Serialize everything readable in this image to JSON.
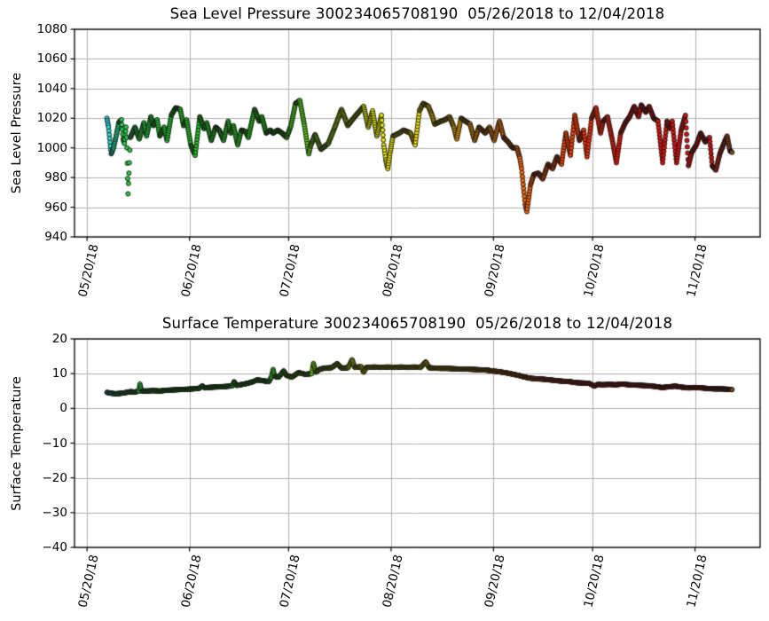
{
  "figure": {
    "background": "#ffffff",
    "grid_color": "#b0b0b0",
    "spine_color": "#000000",
    "marker_edge_color": "#141414"
  },
  "colormap": {
    "description": "point color encodes time from start (cyan) to end (brown)",
    "time_range_days": [
      6.0,
      195.2
    ],
    "stops": [
      [
        0.0,
        "#2BE0EE"
      ],
      [
        0.025,
        "#20CE46"
      ],
      [
        0.12,
        "#1EC31F"
      ],
      [
        0.25,
        "#27C81C"
      ],
      [
        0.31,
        "#4FCD14"
      ],
      [
        0.35,
        "#8ED309"
      ],
      [
        0.41,
        "#D8E600"
      ],
      [
        0.47,
        "#F2EC00"
      ],
      [
        0.53,
        "#FBC800"
      ],
      [
        0.59,
        "#F89400"
      ],
      [
        0.66,
        "#F96A00"
      ],
      [
        0.74,
        "#F43C00"
      ],
      [
        0.82,
        "#E91507"
      ],
      [
        0.92,
        "#DC0E0E"
      ],
      [
        0.965,
        "#CC100D"
      ],
      [
        0.98,
        "#B12410"
      ],
      [
        1.0,
        "#84451C"
      ]
    ]
  },
  "chart_data": [
    {
      "type": "scatter",
      "title": "Sea Level Pressure 300234065708190  05/26/2018 to 12/04/2018",
      "ylabel": "Sea Level Pressure",
      "ylim": [
        940,
        1080
      ],
      "ytick_values": [
        1080,
        1060,
        1040,
        1020,
        1000,
        980,
        960,
        940
      ],
      "ytick_labels": [
        "1080",
        "1060",
        "1040",
        "1020",
        "1000",
        "980",
        "960",
        "940"
      ],
      "xlim_days": [
        -3.8,
        203.7
      ],
      "xtick_days": [
        0,
        31,
        61,
        92,
        123,
        153,
        184
      ],
      "xtick_labels": [
        "05/20/18",
        "06/20/18",
        "07/20/18",
        "08/20/18",
        "09/20/18",
        "10/20/18",
        "11/20/18"
      ],
      "grid": true,
      "x_unit": "days since 05/20/2018",
      "points": [
        [
          6.0,
          1020
        ],
        [
          6.5,
          1014
        ],
        [
          7.3,
          996
        ],
        [
          8.0,
          1000
        ],
        [
          8.8,
          1008
        ],
        [
          9.6,
          1017
        ],
        [
          10.4,
          1019
        ],
        [
          10.9,
          1006
        ],
        [
          11.3,
          1003
        ],
        [
          11.8,
          1014
        ],
        [
          12.1,
          1000
        ],
        [
          12.4,
          969
        ],
        [
          12.8,
          990
        ],
        [
          13.1,
          1007
        ],
        [
          14.5,
          1014
        ],
        [
          15.8,
          1006
        ],
        [
          17.2,
          1017
        ],
        [
          18.0,
          1008
        ],
        [
          19.3,
          1021
        ],
        [
          20.1,
          1015
        ],
        [
          21.2,
          1019
        ],
        [
          22.0,
          1008
        ],
        [
          23.3,
          1014
        ],
        [
          24.2,
          1005
        ],
        [
          25.5,
          1022
        ],
        [
          26.8,
          1027
        ],
        [
          28.2,
          1026
        ],
        [
          29.2,
          1015
        ],
        [
          30.1,
          1019
        ],
        [
          31.4,
          1002
        ],
        [
          32.7,
          995
        ],
        [
          34.1,
          1021
        ],
        [
          35.4,
          1013
        ],
        [
          36.2,
          1017
        ],
        [
          37.6,
          1005
        ],
        [
          38.9,
          1014
        ],
        [
          40.0,
          1012
        ],
        [
          41.3,
          1005
        ],
        [
          42.7,
          1018
        ],
        [
          43.5,
          1010
        ],
        [
          44.3,
          1015
        ],
        [
          45.6,
          1002
        ],
        [
          46.7,
          1012
        ],
        [
          48.0,
          1011
        ],
        [
          48.8,
          1007
        ],
        [
          50.7,
          1026
        ],
        [
          52.1,
          1018
        ],
        [
          52.9,
          1021
        ],
        [
          54.2,
          1010
        ],
        [
          55.5,
          1012
        ],
        [
          56.3,
          1010
        ],
        [
          57.7,
          1012
        ],
        [
          59.0,
          1010
        ],
        [
          60.4,
          1007
        ],
        [
          61.7,
          1015
        ],
        [
          63.1,
          1030
        ],
        [
          64.4,
          1032
        ],
        [
          65.8,
          1015
        ],
        [
          67.1,
          996
        ],
        [
          67.6,
          1001
        ],
        [
          69.0,
          1009
        ],
        [
          70.8,
          999
        ],
        [
          73.0,
          1003
        ],
        [
          75.0,
          1014
        ],
        [
          77.0,
          1026
        ],
        [
          78.9,
          1015
        ],
        [
          81.0,
          1021
        ],
        [
          83.7,
          1028
        ],
        [
          85.1,
          1014
        ],
        [
          86.4,
          1025
        ],
        [
          87.7,
          1008
        ],
        [
          89.1,
          1022
        ],
        [
          89.8,
          1002
        ],
        [
          90.4,
          992
        ],
        [
          91.0,
          986
        ],
        [
          91.8,
          998
        ],
        [
          92.6,
          1008
        ],
        [
          94.5,
          1010
        ],
        [
          95.8,
          1012
        ],
        [
          97.9,
          1010
        ],
        [
          99.3,
          1002
        ],
        [
          100.6,
          1025
        ],
        [
          101.7,
          1030
        ],
        [
          103.3,
          1028
        ],
        [
          104.4,
          1022
        ],
        [
          105.2,
          1016
        ],
        [
          107.1,
          1018
        ],
        [
          108.4,
          1019
        ],
        [
          109.7,
          1021
        ],
        [
          111.0,
          1014
        ],
        [
          111.9,
          1006
        ],
        [
          113.2,
          1020
        ],
        [
          114.5,
          1018
        ],
        [
          115.9,
          1016
        ],
        [
          117.3,
          1005
        ],
        [
          118.6,
          1014
        ],
        [
          120.5,
          1010
        ],
        [
          121.8,
          1014
        ],
        [
          123.2,
          1005
        ],
        [
          124.8,
          1018
        ],
        [
          126.1,
          1007
        ],
        [
          127.4,
          1004
        ],
        [
          128.8,
          1000
        ],
        [
          130.1,
          1000
        ],
        [
          131.0,
          993
        ],
        [
          131.5,
          986
        ],
        [
          132.6,
          962
        ],
        [
          133.1,
          957
        ],
        [
          134.2,
          975
        ],
        [
          135.2,
          982
        ],
        [
          136.6,
          983
        ],
        [
          137.9,
          979
        ],
        [
          139.5,
          989
        ],
        [
          140.9,
          986
        ],
        [
          142.2,
          994
        ],
        [
          143.6,
          989
        ],
        [
          144.9,
          1010
        ],
        [
          146.3,
          995
        ],
        [
          147.6,
          1022
        ],
        [
          149.0,
          1005
        ],
        [
          150.3,
          1012
        ],
        [
          151.3,
          994
        ],
        [
          152.7,
          1020
        ],
        [
          154.0,
          1027
        ],
        [
          155.4,
          1010
        ],
        [
          156.2,
          1018
        ],
        [
          157.5,
          1021
        ],
        [
          158.9,
          1006
        ],
        [
          160.2,
          990
        ],
        [
          161.5,
          1010
        ],
        [
          162.9,
          1017
        ],
        [
          164.2,
          1021
        ],
        [
          165.6,
          1028
        ],
        [
          166.9,
          1021
        ],
        [
          167.7,
          1029
        ],
        [
          169.1,
          1024
        ],
        [
          170.1,
          1028
        ],
        [
          171.5,
          1020
        ],
        [
          172.8,
          1018
        ],
        [
          174.2,
          990
        ],
        [
          175.5,
          1018
        ],
        [
          176.3,
          1013
        ],
        [
          177.1,
          1018
        ],
        [
          178.4,
          990
        ],
        [
          179.8,
          1012
        ],
        [
          181.1,
          1022
        ],
        [
          182.0,
          988
        ],
        [
          183.0,
          997
        ],
        [
          184.4,
          1002
        ],
        [
          185.7,
          1010
        ],
        [
          187.1,
          1004
        ],
        [
          188.4,
          1007
        ],
        [
          189.2,
          988
        ],
        [
          190.3,
          985
        ],
        [
          191.5,
          996
        ],
        [
          192.9,
          1004
        ],
        [
          193.7,
          1008
        ],
        [
          194.6,
          998
        ],
        [
          195.2,
          997
        ]
      ]
    },
    {
      "type": "scatter",
      "title": "Surface Temperature 300234065708190  05/26/2018 to 12/04/2018",
      "ylabel": "Surface Temperature",
      "ylim": [
        -40,
        20
      ],
      "ytick_values": [
        20,
        10,
        0,
        -10,
        -20,
        -30,
        -40
      ],
      "ytick_labels": [
        "20",
        "10",
        "0",
        "−10",
        "−20",
        "−30",
        "−40"
      ],
      "xlim_days": [
        -3.8,
        203.7
      ],
      "xtick_days": [
        0,
        31,
        61,
        92,
        123,
        153,
        184
      ],
      "xtick_labels": [
        "05/20/18",
        "06/20/18",
        "07/20/18",
        "08/20/18",
        "09/20/18",
        "10/20/18",
        "11/20/18"
      ],
      "grid": true,
      "x_unit": "days since 05/20/2018",
      "points": [
        [
          6.0,
          4.6
        ],
        [
          7.0,
          4.4
        ],
        [
          8.5,
          4.2
        ],
        [
          10.0,
          4.3
        ],
        [
          11.5,
          4.5
        ],
        [
          13.0,
          4.8
        ],
        [
          14.5,
          4.7
        ],
        [
          15.7,
          5.0
        ],
        [
          16.0,
          7.0
        ],
        [
          16.5,
          5.0
        ],
        [
          18.0,
          5.0
        ],
        [
          20.0,
          5.1
        ],
        [
          22.0,
          5.0
        ],
        [
          24.0,
          5.2
        ],
        [
          26.0,
          5.3
        ],
        [
          28.0,
          5.4
        ],
        [
          30.0,
          5.5
        ],
        [
          32.0,
          5.6
        ],
        [
          34.0,
          5.8
        ],
        [
          34.9,
          6.5
        ],
        [
          35.6,
          5.9
        ],
        [
          36.5,
          6.0
        ],
        [
          38.0,
          6.1
        ],
        [
          40.0,
          6.2
        ],
        [
          42.0,
          6.3
        ],
        [
          44.0,
          6.5
        ],
        [
          44.5,
          7.7
        ],
        [
          45.2,
          6.6
        ],
        [
          47.0,
          6.9
        ],
        [
          48.5,
          7.2
        ],
        [
          50.0,
          7.6
        ],
        [
          51.5,
          8.2
        ],
        [
          53.0,
          8.0
        ],
        [
          55.0,
          7.7
        ],
        [
          55.8,
          9.0
        ],
        [
          56.3,
          11.2
        ],
        [
          56.8,
          9.2
        ],
        [
          58.0,
          9.0
        ],
        [
          59.5,
          10.8
        ],
        [
          60.3,
          9.5
        ],
        [
          62.0,
          9.0
        ],
        [
          64.0,
          10.3
        ],
        [
          66.0,
          9.8
        ],
        [
          68.0,
          10.0
        ],
        [
          68.5,
          12.9
        ],
        [
          69.2,
          10.4
        ],
        [
          70.5,
          11.3
        ],
        [
          72.0,
          11.6
        ],
        [
          74.0,
          11.7
        ],
        [
          75.7,
          12.9
        ],
        [
          77.0,
          11.6
        ],
        [
          79.0,
          11.7
        ],
        [
          80.2,
          14.0
        ],
        [
          81.0,
          11.8
        ],
        [
          83.0,
          12.0
        ],
        [
          83.7,
          10.4
        ],
        [
          84.5,
          11.8
        ],
        [
          87.0,
          11.9
        ],
        [
          89.0,
          11.8
        ],
        [
          91.0,
          11.9
        ],
        [
          93.0,
          11.8
        ],
        [
          95.0,
          11.9
        ],
        [
          97.0,
          11.8
        ],
        [
          99.0,
          11.9
        ],
        [
          101.0,
          11.8
        ],
        [
          102.5,
          13.4
        ],
        [
          103.5,
          11.7
        ],
        [
          105.0,
          11.6
        ],
        [
          107.0,
          11.5
        ],
        [
          109.0,
          11.5
        ],
        [
          111.0,
          11.4
        ],
        [
          113.0,
          11.3
        ],
        [
          115.0,
          11.3
        ],
        [
          117.0,
          11.2
        ],
        [
          119.0,
          11.1
        ],
        [
          121.0,
          11.0
        ],
        [
          122.5,
          10.8
        ],
        [
          125.0,
          10.5
        ],
        [
          127.0,
          10.2
        ],
        [
          129.0,
          9.8
        ],
        [
          131.0,
          9.4
        ],
        [
          132.0,
          9.1
        ],
        [
          134.0,
          8.7
        ],
        [
          136.0,
          8.5
        ],
        [
          138.0,
          8.4
        ],
        [
          140.0,
          8.2
        ],
        [
          142.0,
          8.0
        ],
        [
          144.0,
          7.8
        ],
        [
          146.0,
          7.7
        ],
        [
          148.0,
          7.4
        ],
        [
          150.0,
          7.3
        ],
        [
          152.0,
          7.2
        ],
        [
          153.5,
          6.4
        ],
        [
          154.5,
          6.9
        ],
        [
          156.0,
          6.8
        ],
        [
          158.0,
          6.9
        ],
        [
          160.0,
          6.8
        ],
        [
          162.0,
          7.0
        ],
        [
          164.0,
          6.8
        ],
        [
          166.0,
          6.7
        ],
        [
          168.0,
          6.6
        ],
        [
          170.0,
          6.5
        ],
        [
          172.0,
          6.3
        ],
        [
          174.0,
          6.0
        ],
        [
          176.0,
          6.2
        ],
        [
          178.0,
          6.4
        ],
        [
          180.0,
          6.1
        ],
        [
          182.0,
          5.9
        ],
        [
          184.0,
          6.0
        ],
        [
          186.0,
          5.9
        ],
        [
          188.0,
          5.7
        ],
        [
          190.0,
          5.6
        ],
        [
          192.0,
          5.6
        ],
        [
          194.0,
          5.5
        ],
        [
          195.2,
          5.4
        ]
      ]
    }
  ]
}
